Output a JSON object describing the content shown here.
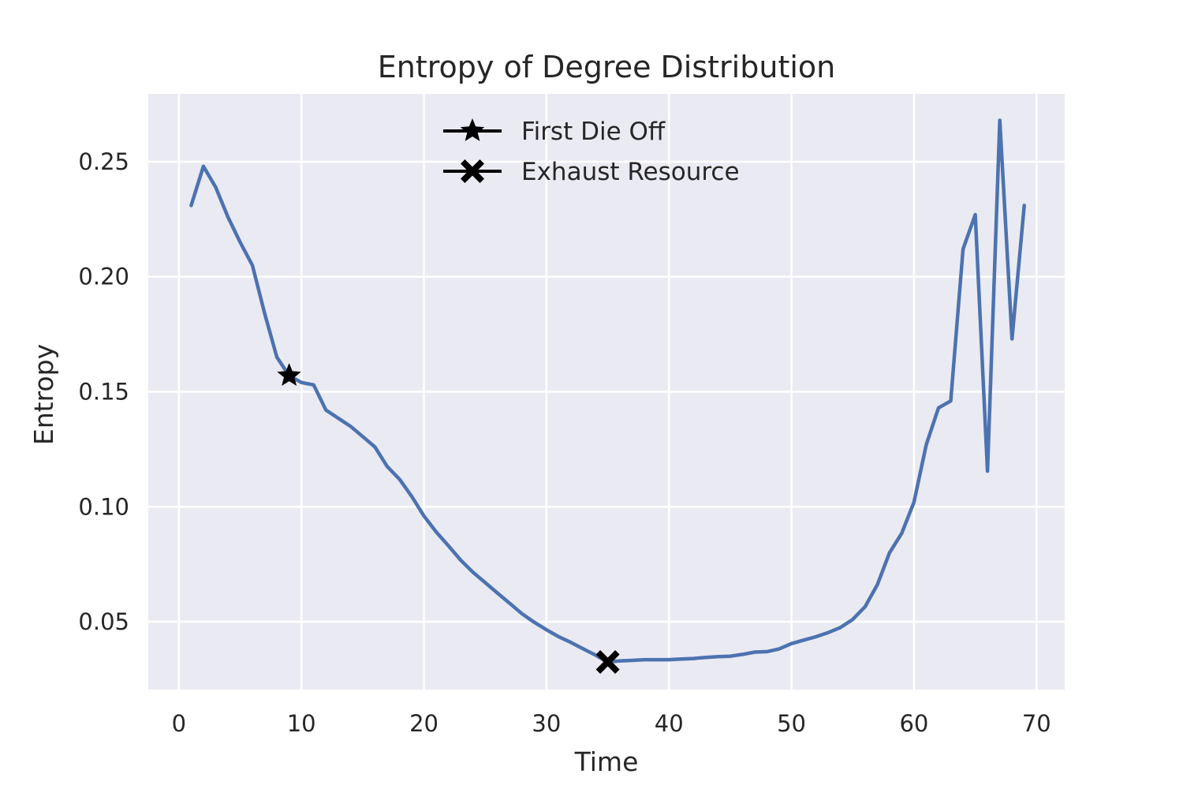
{
  "chart_data": {
    "type": "line",
    "title": "Entropy of Degree Distribution",
    "xlabel": "Time",
    "ylabel": "Entropy",
    "xlim": [
      -2.5,
      72.3
    ],
    "ylim": [
      0.0205,
      0.2795
    ],
    "xticks": [
      0,
      10,
      20,
      30,
      40,
      50,
      60,
      70
    ],
    "yticks": [
      0.05,
      0.1,
      0.15,
      0.2,
      0.25
    ],
    "ytick_labels": [
      "0.05",
      "0.10",
      "0.15",
      "0.20",
      "0.25"
    ],
    "grid": true,
    "legend_position": "upper center",
    "colors": {
      "line": "#4c72b0",
      "plot_background": "#eaeaf2",
      "grid": "#ffffff",
      "markers": "#000000"
    },
    "series": [
      {
        "x": [
          1,
          2,
          3,
          4,
          5,
          6,
          7,
          8,
          9,
          10,
          11,
          12,
          13,
          14,
          15,
          16,
          17,
          18,
          19,
          20,
          21,
          22,
          23,
          24,
          25,
          26,
          27,
          28,
          29,
          30,
          31,
          32,
          33,
          34,
          35,
          36,
          37,
          38,
          39,
          40,
          41,
          42,
          43,
          44,
          45,
          46,
          47,
          48,
          49,
          50,
          51,
          52,
          53,
          54,
          55,
          56,
          57,
          58,
          59,
          60,
          61,
          62,
          63,
          64,
          65,
          66,
          67,
          68,
          69
        ],
        "values": [
          0.231,
          0.248,
          0.239,
          0.226,
          0.215,
          0.205,
          0.184,
          0.165,
          0.157,
          0.154,
          0.153,
          0.142,
          0.1385,
          0.135,
          0.1305,
          0.126,
          0.1175,
          0.112,
          0.1045,
          0.096,
          0.089,
          0.083,
          0.0768,
          0.0715,
          0.067,
          0.0625,
          0.058,
          0.0535,
          0.0498,
          0.0465,
          0.0435,
          0.041,
          0.0382,
          0.0355,
          0.0325,
          0.033,
          0.0332,
          0.0335,
          0.0335,
          0.0335,
          0.0338,
          0.034,
          0.0345,
          0.0348,
          0.035,
          0.0358,
          0.0368,
          0.037,
          0.0382,
          0.0405,
          0.042,
          0.0435,
          0.0453,
          0.0475,
          0.051,
          0.0565,
          0.066,
          0.08,
          0.0885,
          0.102,
          0.127,
          0.143,
          0.146,
          0.212,
          0.227,
          0.1155,
          0.268,
          0.173,
          0.231
        ]
      }
    ],
    "markers": [
      {
        "label": "First Die Off",
        "symbol": "star",
        "x": 9,
        "y": 0.157
      },
      {
        "label": "Exhaust Resource",
        "symbol": "x",
        "x": 35,
        "y": 0.0325
      }
    ]
  }
}
